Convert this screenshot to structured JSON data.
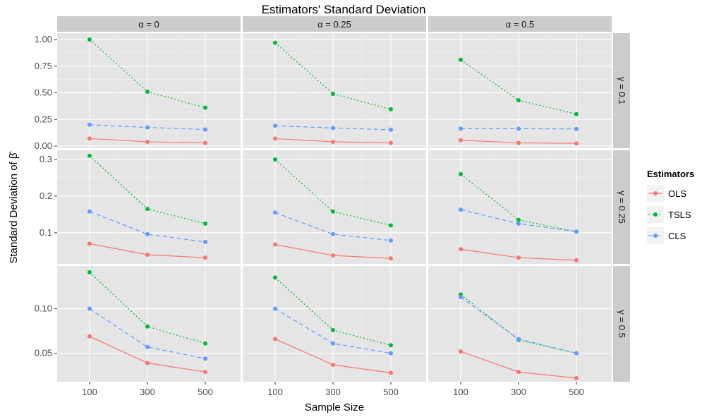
{
  "chart_data": {
    "type": "line",
    "title": "Estimators' Standard Deviation",
    "xlabel": "Sample Size",
    "ylabel": "Standard Deviation of β̂",
    "x": [
      100,
      300,
      500
    ],
    "x_tick_labels": [
      "100",
      "300",
      "500"
    ],
    "legend": {
      "title": "Estimators",
      "placement": "right"
    },
    "columns": [
      {
        "label": "α = 0"
      },
      {
        "label": "α = 0.25"
      },
      {
        "label": "α = 0.5"
      }
    ],
    "rows": [
      {
        "label": "γ = 0.1",
        "ylim": [
          -0.02,
          1.06
        ],
        "ticks": [
          0.0,
          0.25,
          0.5,
          0.75,
          1.0
        ],
        "tick_labels": [
          "0.00",
          "0.25",
          "0.50",
          "0.75",
          "1.00"
        ]
      },
      {
        "label": "γ = 0.25",
        "ylim": [
          0.015,
          0.325
        ],
        "ticks": [
          0.1,
          0.2,
          0.3
        ],
        "tick_labels": [
          "0.1",
          "0.2",
          "0.3"
        ]
      },
      {
        "label": "γ = 0.5",
        "ylim": [
          0.018,
          0.148
        ],
        "ticks": [
          0.05,
          0.1
        ],
        "tick_labels": [
          "0.05",
          "0.10"
        ]
      }
    ],
    "series": [
      {
        "name": "OLS",
        "color": "#f8766d",
        "dash": "solid",
        "panels": [
          [
            [
              0.07,
              0.04,
              0.03
            ],
            [
              0.07,
              0.04,
              0.03
            ],
            [
              0.055,
              0.03,
              0.025
            ]
          ],
          [
            [
              0.07,
              0.04,
              0.032
            ],
            [
              0.068,
              0.038,
              0.03
            ],
            [
              0.055,
              0.032,
              0.025
            ]
          ],
          [
            [
              0.069,
              0.039,
              0.029
            ],
            [
              0.066,
              0.037,
              0.028
            ],
            [
              0.052,
              0.029,
              0.022
            ]
          ]
        ]
      },
      {
        "name": "TSLS",
        "color": "#00ba38",
        "dash": "dotted",
        "panels": [
          [
            [
              1.0,
              0.51,
              0.36
            ],
            [
              0.97,
              0.49,
              0.345
            ],
            [
              0.81,
              0.43,
              0.3
            ]
          ],
          [
            [
              0.31,
              0.165,
              0.125
            ],
            [
              0.3,
              0.158,
              0.12
            ],
            [
              0.26,
              0.135,
              0.103
            ]
          ],
          [
            [
              0.141,
              0.08,
              0.061
            ],
            [
              0.135,
              0.076,
              0.059
            ],
            [
              0.116,
              0.065,
              0.05
            ]
          ]
        ]
      },
      {
        "name": "CLS",
        "color": "#619cff",
        "dash": "dashed",
        "panels": [
          [
            [
              0.2,
              0.175,
              0.155
            ],
            [
              0.19,
              0.17,
              0.153
            ],
            [
              0.163,
              0.163,
              0.16
            ]
          ],
          [
            [
              0.158,
              0.096,
              0.075
            ],
            [
              0.155,
              0.096,
              0.079
            ],
            [
              0.163,
              0.125,
              0.103
            ]
          ],
          [
            [
              0.1,
              0.057,
              0.044
            ],
            [
              0.1,
              0.061,
              0.05
            ],
            [
              0.113,
              0.066,
              0.05
            ]
          ]
        ]
      }
    ]
  }
}
